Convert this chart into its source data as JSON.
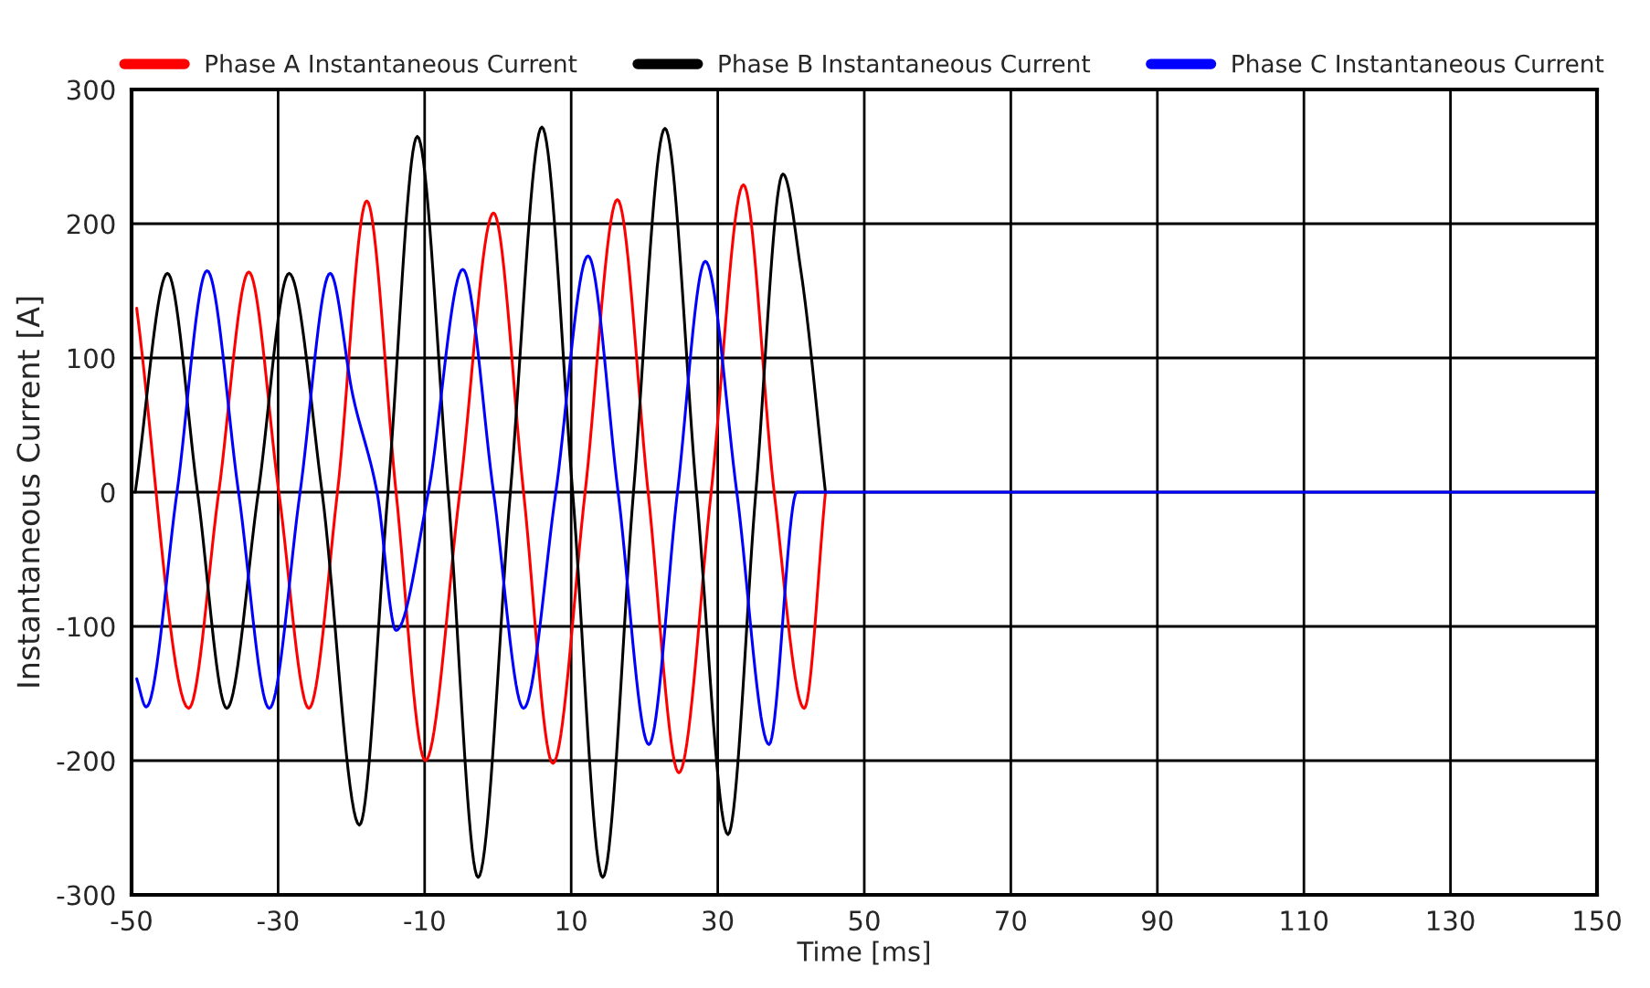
{
  "chart_data": {
    "type": "line",
    "xlabel": "Time [ms]",
    "ylabel": "Instantaneous Current [A]",
    "xlim": [
      -50,
      150
    ],
    "xticks": [
      -50,
      -30,
      -10,
      10,
      30,
      50,
      70,
      90,
      110,
      130,
      150
    ],
    "ylim": [
      -300,
      300
    ],
    "yticks": [
      -300,
      -200,
      -100,
      0,
      100,
      200,
      300
    ],
    "grid": true,
    "legend": "top",
    "marker": "none",
    "line_style": "solid",
    "series": [
      {
        "name": "Phase A Instantaneous Current",
        "color": "#ff0000",
        "x": [
          -49.3,
          -42.2,
          -38.1,
          -34,
          -29.9,
          -25.8,
          -21.9,
          -17.9,
          -13.9,
          -9.9,
          -5.2,
          -0.6,
          3.5,
          7.5,
          11.9,
          16.3,
          20.5,
          24.7,
          29.1,
          33.5,
          37.7,
          41.8,
          44.7
        ],
        "values": [
          137,
          -161,
          0,
          164,
          0,
          -161,
          0,
          217,
          0,
          -200,
          0,
          208,
          0,
          -202,
          0,
          218,
          0,
          -209,
          0,
          229,
          0,
          -161,
          0
        ]
      },
      {
        "name": "Phase B Instantaneous Current",
        "color": "#000000",
        "x": [
          -49.5,
          -45.1,
          -41,
          -37,
          -32.7,
          -28.5,
          -24,
          -18.9,
          -15,
          -11,
          -6.8,
          -2.7,
          1.7,
          6,
          10.2,
          14.3,
          18.5,
          22.8,
          27.1,
          31.4,
          35.2,
          38.9,
          41.4,
          44.7
        ],
        "values": [
          0,
          163,
          0,
          -161,
          0,
          163,
          0,
          -248,
          0,
          265,
          0,
          -287,
          0,
          272,
          0,
          -287,
          0,
          271,
          0,
          -255,
          0,
          237,
          163,
          0
        ]
      },
      {
        "name": "Phase C Instantaneous Current",
        "color": "#0000ff",
        "x": [
          -49.3,
          -48,
          -43.8,
          -39.7,
          -35.4,
          -31.2,
          -27,
          -22.9,
          -19.8,
          -16.5,
          -13.9,
          -9.5,
          -4.8,
          -0.6,
          3.5,
          7.9,
          12.3,
          16.4,
          20.6,
          24.5,
          28.3,
          32.6,
          37,
          40.8,
          150
        ],
        "values": [
          -139,
          -160,
          0,
          165,
          0,
          -161,
          0,
          163,
          72,
          0,
          -103,
          0,
          166,
          0,
          -161,
          0,
          176,
          0,
          -188,
          0,
          172,
          0,
          -188,
          0,
          0
        ]
      }
    ]
  }
}
